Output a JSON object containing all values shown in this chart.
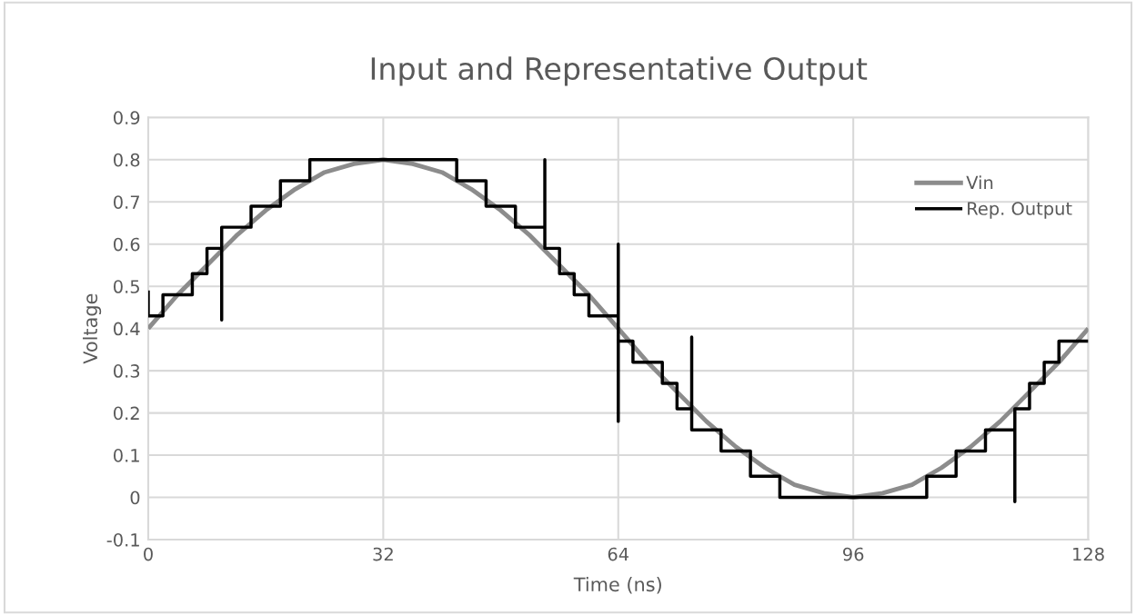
{
  "chart_data": {
    "type": "line",
    "title": "Input and Representative Output",
    "xlabel": "Time (ns)",
    "ylabel": "Voltage",
    "xlim": [
      0,
      128
    ],
    "xticks": [
      0,
      32,
      64,
      96,
      128
    ],
    "ylim": [
      -0.1,
      0.9
    ],
    "yticks": [
      -0.1,
      0,
      0.1,
      0.2,
      0.3,
      0.4,
      0.5,
      0.6,
      0.7,
      0.8,
      0.9
    ],
    "grid": true,
    "legend": "top right",
    "marker": "none",
    "line_style": "solid",
    "series": [
      {
        "name": "Vin",
        "color": "#8c8c8c",
        "x": [
          0,
          4,
          8,
          12,
          16,
          20,
          24,
          28,
          32,
          36,
          40,
          44,
          48,
          52,
          56,
          60,
          64,
          68,
          72,
          76,
          80,
          84,
          88,
          92,
          96,
          100,
          104,
          108,
          112,
          116,
          120,
          124,
          128
        ],
        "values": [
          0.4,
          0.48,
          0.55,
          0.62,
          0.68,
          0.73,
          0.77,
          0.79,
          0.8,
          0.79,
          0.77,
          0.73,
          0.68,
          0.62,
          0.55,
          0.48,
          0.4,
          0.32,
          0.25,
          0.18,
          0.12,
          0.07,
          0.03,
          0.01,
          0,
          0.01,
          0.03,
          0.07,
          0.12,
          0.18,
          0.25,
          0.32,
          0.4
        ]
      },
      {
        "name": "Rep. Output",
        "color": "#000000",
        "x": [
          0,
          0,
          2,
          2,
          6,
          6,
          8,
          8,
          10,
          10,
          10,
          14,
          14,
          18,
          18,
          22,
          22,
          42,
          42,
          46,
          46,
          50,
          50,
          54,
          54,
          54,
          56,
          56,
          58,
          58,
          60,
          60,
          64,
          64,
          64,
          64,
          66,
          66,
          70,
          70,
          72,
          72,
          74,
          74,
          74,
          78,
          78,
          82,
          82,
          86,
          86,
          106,
          106,
          110,
          110,
          114,
          114,
          118,
          118,
          118,
          120,
          120,
          122,
          122,
          124,
          124,
          128
        ],
        "values": [
          0.49,
          0.43,
          0.43,
          0.48,
          0.48,
          0.53,
          0.53,
          0.59,
          0.59,
          0.42,
          0.64,
          0.64,
          0.69,
          0.69,
          0.75,
          0.75,
          0.8,
          0.8,
          0.75,
          0.75,
          0.69,
          0.69,
          0.64,
          0.64,
          0.8,
          0.59,
          0.59,
          0.53,
          0.53,
          0.48,
          0.48,
          0.43,
          0.43,
          0.6,
          0.18,
          0.37,
          0.37,
          0.32,
          0.32,
          0.27,
          0.27,
          0.21,
          0.21,
          0.38,
          0.16,
          0.16,
          0.11,
          0.11,
          0.05,
          0.05,
          0,
          0,
          0.05,
          0.05,
          0.11,
          0.11,
          0.16,
          0.16,
          -0.01,
          0.21,
          0.21,
          0.27,
          0.27,
          0.32,
          0.32,
          0.37,
          0.37
        ]
      }
    ]
  }
}
